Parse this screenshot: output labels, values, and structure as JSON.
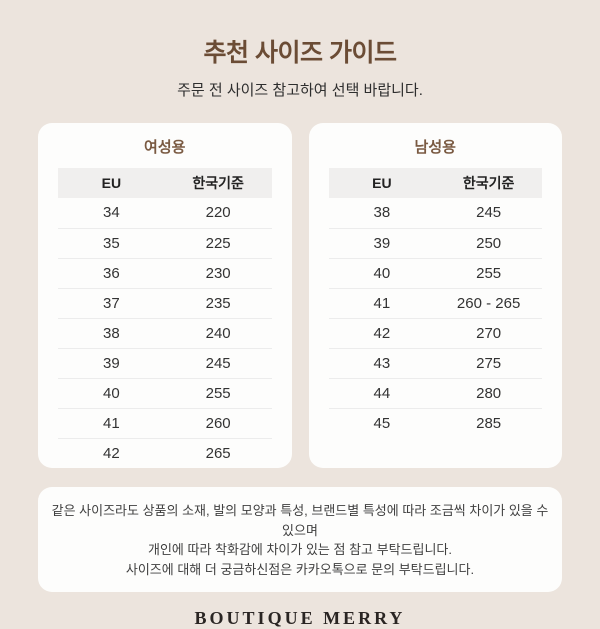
{
  "header": {
    "title": "추천 사이즈 가이드",
    "subtitle": "주문 전 사이즈 참고하여 선택 바랍니다."
  },
  "tables": {
    "women": {
      "title": "여성용",
      "columns": [
        "EU",
        "한국기준"
      ],
      "rows": [
        [
          "34",
          "220"
        ],
        [
          "35",
          "225"
        ],
        [
          "36",
          "230"
        ],
        [
          "37",
          "235"
        ],
        [
          "38",
          "240"
        ],
        [
          "39",
          "245"
        ],
        [
          "40",
          "255"
        ],
        [
          "41",
          "260"
        ],
        [
          "42",
          "265"
        ]
      ]
    },
    "men": {
      "title": "남성용",
      "columns": [
        "EU",
        "한국기준"
      ],
      "rows": [
        [
          "38",
          "245"
        ],
        [
          "39",
          "250"
        ],
        [
          "40",
          "255"
        ],
        [
          "41",
          "260 - 265"
        ],
        [
          "42",
          "270"
        ],
        [
          "43",
          "275"
        ],
        [
          "44",
          "280"
        ],
        [
          "45",
          "285"
        ]
      ]
    }
  },
  "notice": {
    "lines": [
      "같은 사이즈라도 상품의 소재, 발의 모양과 특성, 브랜드별 특성에 따라 조금씩 차이가 있을 수 있으며",
      "개인에 따라 착화감에 차이가 있는 점 참고 부탁드립니다.",
      "사이즈에 대해 더 궁금하신점은 카카오톡으로 문의 부탁드립니다."
    ]
  },
  "footer": {
    "brand": "BOUTIQUE MERRY"
  },
  "colors": {
    "background": "#ece4dd",
    "card_background": "#fdfdfc",
    "title_brown": "#6b4c35",
    "card_title_brown": "#7a5a42",
    "table_header_bg": "#f0efee",
    "divider": "#ececec",
    "body_text": "#333333",
    "brand_text": "#2a2523"
  }
}
